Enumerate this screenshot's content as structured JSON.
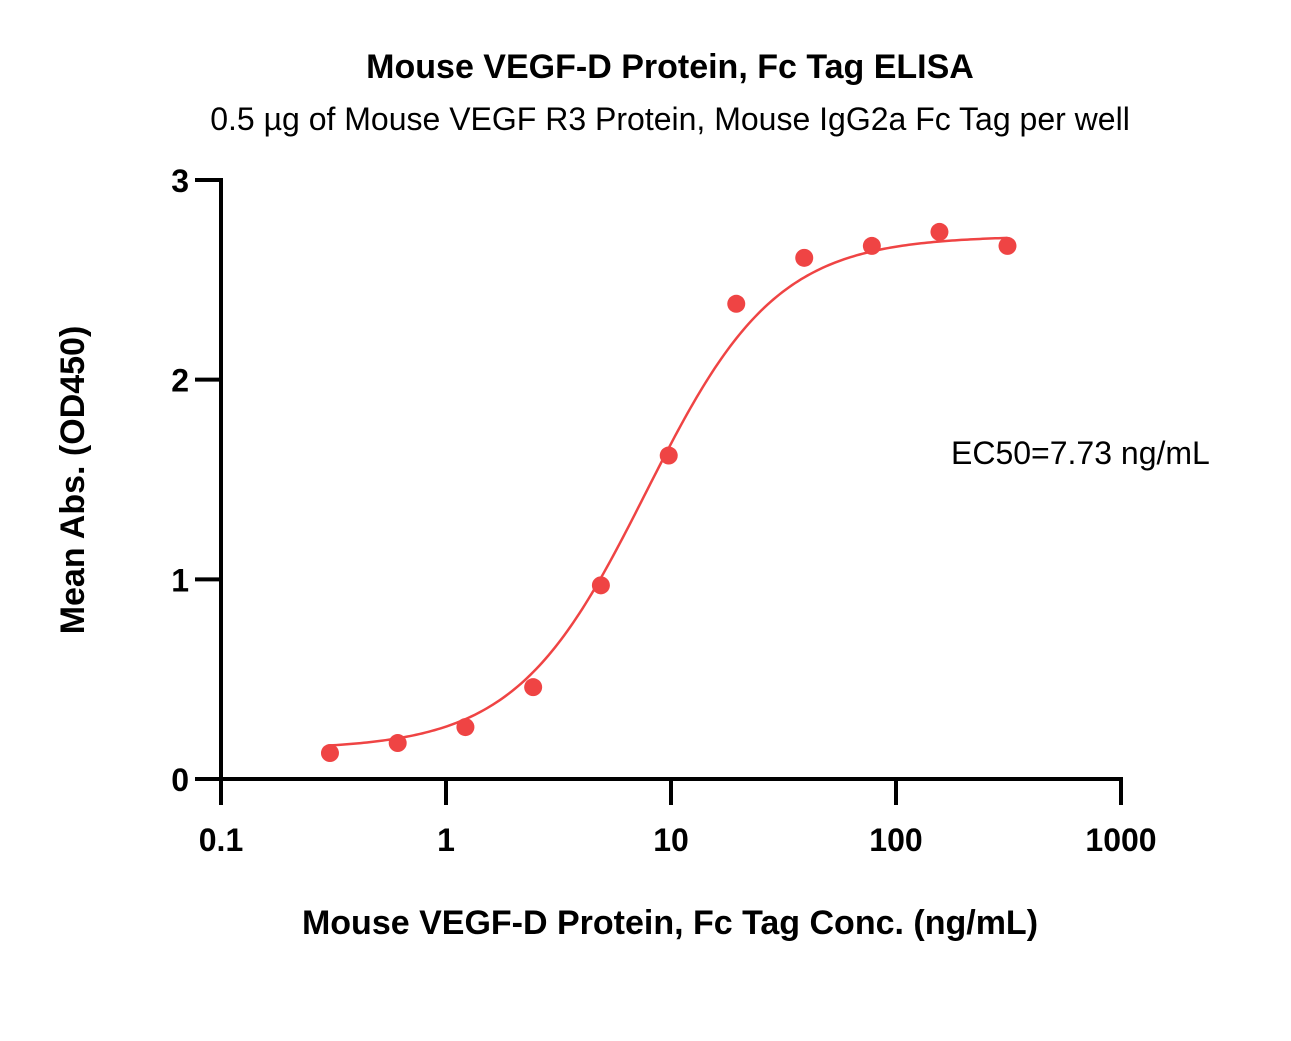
{
  "chart_data": {
    "type": "scatter",
    "title": "Mouse VEGF-D Protein, Fc Tag ELISA",
    "subtitle": "0.5 µg of Mouse VEGF R3 Protein, Mouse IgG2a Fc Tag per well",
    "xlabel": "Mouse VEGF-D Protein, Fc Tag Conc. (ng/mL)",
    "ylabel": "Mean Abs. (OD450)",
    "x_scale": "log",
    "xlim": [
      0.1,
      1000
    ],
    "ylim": [
      0,
      3
    ],
    "x_ticks": [
      0.1,
      1,
      10,
      100,
      1000
    ],
    "x_tick_labels": [
      "0.1",
      "1",
      "10",
      "100",
      "1000"
    ],
    "y_ticks": [
      0,
      1,
      2,
      3
    ],
    "y_tick_labels": [
      "0",
      "1",
      "2",
      "3"
    ],
    "grid": false,
    "legend": "none",
    "series": [
      {
        "x": [
          0.305,
          0.61,
          1.22,
          2.44,
          4.88,
          9.77,
          19.5,
          39.1,
          78.1,
          156,
          313
        ],
        "y": [
          0.13,
          0.18,
          0.26,
          0.46,
          0.97,
          1.62,
          2.38,
          2.61,
          2.67,
          2.74,
          2.67
        ],
        "color": "#ef4444"
      }
    ],
    "fit": {
      "model": "4PL",
      "bottom": 0.148,
      "top": 2.72,
      "ec50": 7.73,
      "hill": 1.5,
      "color": "#ef4444"
    },
    "annotations": [
      {
        "text": "EC50=7.73 ng/mL"
      }
    ]
  }
}
